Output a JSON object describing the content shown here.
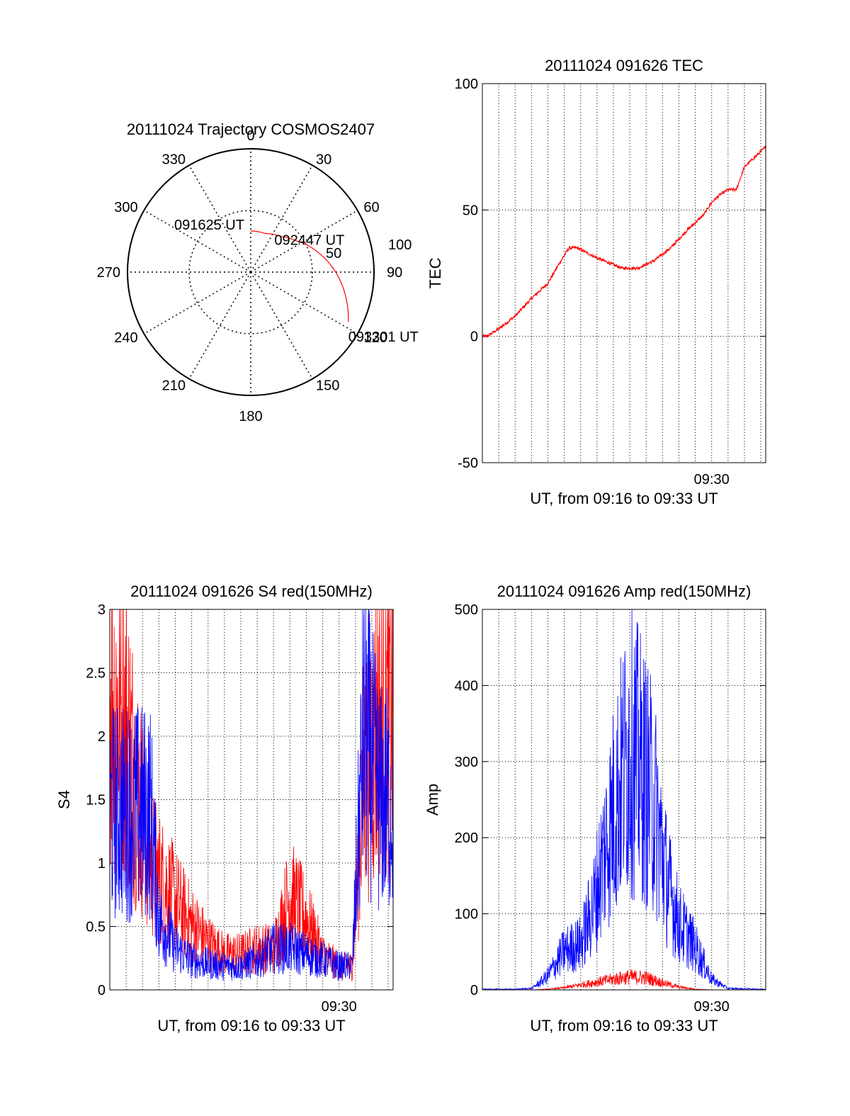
{
  "colors": {
    "series_a": "#ff0000",
    "series_b": "#0000ff",
    "axis": "#000000",
    "grid": "#000000"
  },
  "chart_data": [
    {
      "id": "trajectory",
      "type": "polar",
      "title": "20111024 Trajectory COSMOS2407",
      "azimuth_labels": [
        "0",
        "30",
        "60",
        "90",
        "120",
        "150",
        "180",
        "210",
        "240",
        "270",
        "300",
        "330"
      ],
      "radial_labels": [
        "50",
        "100"
      ],
      "track": {
        "azimuth": [
          0,
          20,
          40,
          55,
          75,
          90,
          105,
          117
        ],
        "elevation": [
          60,
          60,
          56,
          50,
          38,
          28,
          18,
          10
        ]
      },
      "annotations": [
        {
          "text": "091625 UT",
          "azimuth": 0,
          "elevation": 60
        },
        {
          "text": "092447 UT",
          "azimuth": 55,
          "elevation": 50
        },
        {
          "text": "093301 UT",
          "azimuth": 117,
          "elevation": 10
        }
      ]
    },
    {
      "id": "tec",
      "type": "line",
      "title": "20111024 091626 TEC",
      "xlabel": "UT, from 09:16 to 09:33 UT",
      "ylabel": "TEC",
      "xlim": [
        976,
        993.3
      ],
      "ylim": [
        -50,
        100
      ],
      "yticks": [
        "-50",
        "0",
        "50",
        "100"
      ],
      "xtick_label": "09:30",
      "x": [
        976.3,
        977,
        978,
        979,
        980,
        980.8,
        981.3,
        981.8,
        983,
        984.5,
        985.5,
        986.5,
        987.5,
        988.5,
        989.5,
        990,
        990.5,
        991,
        991.5,
        992,
        993.3
      ],
      "values": [
        0,
        3,
        8,
        15,
        21,
        30,
        35,
        35,
        31,
        27,
        27,
        30,
        35,
        42,
        48,
        53,
        56,
        58,
        58,
        67,
        75
      ]
    },
    {
      "id": "s4",
      "type": "line",
      "title": "20111024 091626 S4 red(150MHz)",
      "xlabel": "UT, from 09:16 to 09:33 UT",
      "ylabel": "S4",
      "xlim": [
        976,
        993.3
      ],
      "ylim": [
        0,
        3
      ],
      "yticks": [
        "0",
        "0.5",
        "1",
        "1.5",
        "2",
        "2.5",
        "3"
      ],
      "xtick_label": "09:30",
      "series": [
        {
          "color": "red",
          "x": [
            976,
            977,
            978.5,
            979,
            980,
            981,
            982,
            983,
            984,
            985,
            986,
            987,
            988,
            989,
            990,
            990.8,
            991.5,
            992.5,
            993.3
          ],
          "values": [
            2.5,
            2.2,
            1.1,
            0.95,
            0.75,
            0.55,
            0.4,
            0.3,
            0.3,
            0.35,
            0.35,
            0.8,
            0.6,
            0.3,
            0.2,
            0.2,
            1.8,
            2.3,
            2.3
          ]
        },
        {
          "color": "blue",
          "x": [
            976,
            977,
            978.5,
            979,
            980,
            981,
            982,
            983,
            984,
            985,
            986,
            987,
            988,
            989,
            990,
            990.8,
            991.5,
            992.5,
            993.3
          ],
          "values": [
            1.5,
            1.5,
            1.5,
            0.6,
            0.35,
            0.25,
            0.22,
            0.2,
            0.2,
            0.25,
            0.35,
            0.35,
            0.3,
            0.25,
            0.2,
            0.2,
            2.2,
            1.6,
            1.6
          ]
        }
      ]
    },
    {
      "id": "amp",
      "type": "line",
      "title": "20111024 091626 Amp red(150MHz)",
      "xlabel": "UT, from 09:16 to 09:33 UT",
      "ylabel": "Amp",
      "xlim": [
        976,
        993.3
      ],
      "ylim": [
        0,
        500
      ],
      "yticks": [
        "0",
        "100",
        "200",
        "300",
        "400",
        "500"
      ],
      "xtick_label": "09:30",
      "series": [
        {
          "color": "red",
          "x": [
            976,
            979,
            980,
            981,
            982,
            983,
            984,
            985,
            986,
            987,
            988,
            989,
            990,
            991,
            993.3
          ],
          "values": [
            0,
            0,
            1,
            3,
            7,
            11,
            15,
            18,
            17,
            10,
            4,
            1,
            0,
            0,
            0
          ]
        },
        {
          "color": "blue",
          "x": [
            976,
            978,
            979,
            979.5,
            980,
            981,
            982,
            982.8,
            983.5,
            984.3,
            985,
            985.7,
            986.5,
            987.3,
            988,
            989,
            990,
            991,
            993.3
          ],
          "values": [
            1,
            1,
            2,
            10,
            20,
            55,
            65,
            120,
            200,
            280,
            340,
            310,
            260,
            150,
            95,
            60,
            15,
            2,
            1
          ]
        }
      ]
    }
  ]
}
